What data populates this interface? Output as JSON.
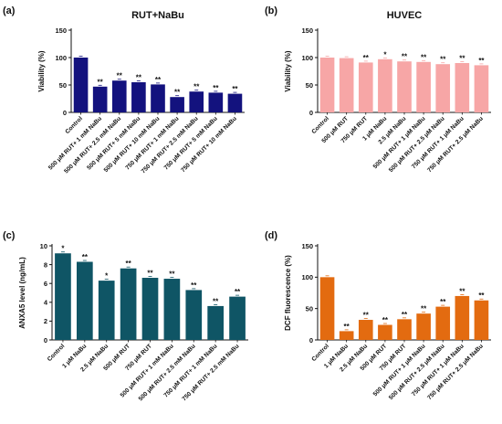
{
  "panels": [
    {
      "id": "a",
      "label": "(a)"
    },
    {
      "id": "b",
      "label": "(b)"
    },
    {
      "id": "c",
      "label": "(c)"
    },
    {
      "id": "d",
      "label": "(d)"
    }
  ],
  "chart_data": [
    {
      "panel": "(a)",
      "type": "bar",
      "title": "RUT+NaBu",
      "ylabel": "Viability (%)",
      "xlabel": "",
      "ylim": [
        0,
        150
      ],
      "yticks": [
        0,
        50,
        100,
        150
      ],
      "color": "#13127e",
      "categories": [
        "Control",
        "500 μM RUT+ 1 mM NaBu",
        "500 μM RUT+ 2.5 mM NaBu",
        "500 μM RUT+ 5 mM NaBu",
        "500 μM RUT+ 10 mM NaBu",
        "750 μM RUT+ 1 mM NaBu",
        "750 μM RUT+ 2.5 mM NaBu",
        "750 μM RUT+ 5 mM NaBu",
        "750 μM RUT+ 10 mM NaBu"
      ],
      "values": [
        100,
        47,
        58,
        55,
        51,
        28,
        38,
        36,
        34
      ],
      "annotations": [
        "",
        "**",
        "**",
        "**",
        "**",
        "**",
        "**",
        "**",
        "**"
      ]
    },
    {
      "panel": "(b)",
      "type": "bar",
      "title": "HUVEC",
      "ylabel": "Viability (%)",
      "xlabel": "",
      "ylim": [
        0,
        150
      ],
      "yticks": [
        0,
        50,
        100,
        150
      ],
      "color": "#f7a6a6",
      "categories": [
        "Control",
        "500 μM RUT",
        "750 μM RUT",
        "1 μM NaBu",
        "2.5 μM NaBu",
        "500 μM RUT+ 1 μM NaBu",
        "500 μM RUT+ 2.5 μM NaBu",
        "750 μM RUT+ 1 μM NaBu",
        "750 μM RUT+ 2.5 μM NaBu"
      ],
      "values": [
        100,
        99,
        91,
        97,
        93,
        92,
        88,
        90,
        86
      ],
      "annotations": [
        "",
        "",
        "**",
        "*",
        "**",
        "**",
        "**",
        "**",
        "**"
      ]
    },
    {
      "panel": "(c)",
      "type": "bar",
      "title": "",
      "ylabel": "ANXA5 level (ng/mL)",
      "xlabel": "",
      "ylim": [
        0,
        10
      ],
      "yticks": [
        0,
        2,
        4,
        6,
        8,
        10
      ],
      "color": "#0f5565",
      "categories": [
        "Control",
        "1 μM NaBu",
        "2.5 μM NaBu",
        "500 μM RUT",
        "750 μM RUT",
        "500 μM RUT+ 1 mM NaBu",
        "500 μM RUT+ 2.5 mM NaBu",
        "750 μM RUT+ 1 mM NaBu",
        "750 μM RUT+ 2.5 mM NaBu"
      ],
      "values": [
        9.2,
        8.3,
        6.3,
        7.6,
        6.6,
        6.5,
        5.3,
        3.6,
        4.6
      ],
      "annotations": [
        "*",
        "**",
        "*",
        "**",
        "**",
        "**",
        "**",
        "**",
        "**"
      ]
    },
    {
      "panel": "(d)",
      "type": "bar",
      "title": "",
      "ylabel": "DCF fluorescence (%)",
      "xlabel": "",
      "ylim": [
        0,
        150
      ],
      "yticks": [
        0,
        50,
        100,
        150
      ],
      "color": "#e36b10",
      "categories": [
        "Control",
        "1 μM NaBu",
        "2.5 μM NaBu",
        "500 μM RUT",
        "750 μM RUT",
        "500 μM RUT+ 1 μM NaBu",
        "500 μM RUT+ 2.5 μM NaBu",
        "750 μM RUT+ 1 μM NaBu",
        "750 μM RUT+ 2.5 μM NaBu"
      ],
      "values": [
        100,
        14,
        32,
        24,
        33,
        42,
        53,
        70,
        63
      ],
      "annotations": [
        "",
        "**",
        "**",
        "**",
        "**",
        "**",
        "**",
        "**",
        "**"
      ]
    }
  ]
}
